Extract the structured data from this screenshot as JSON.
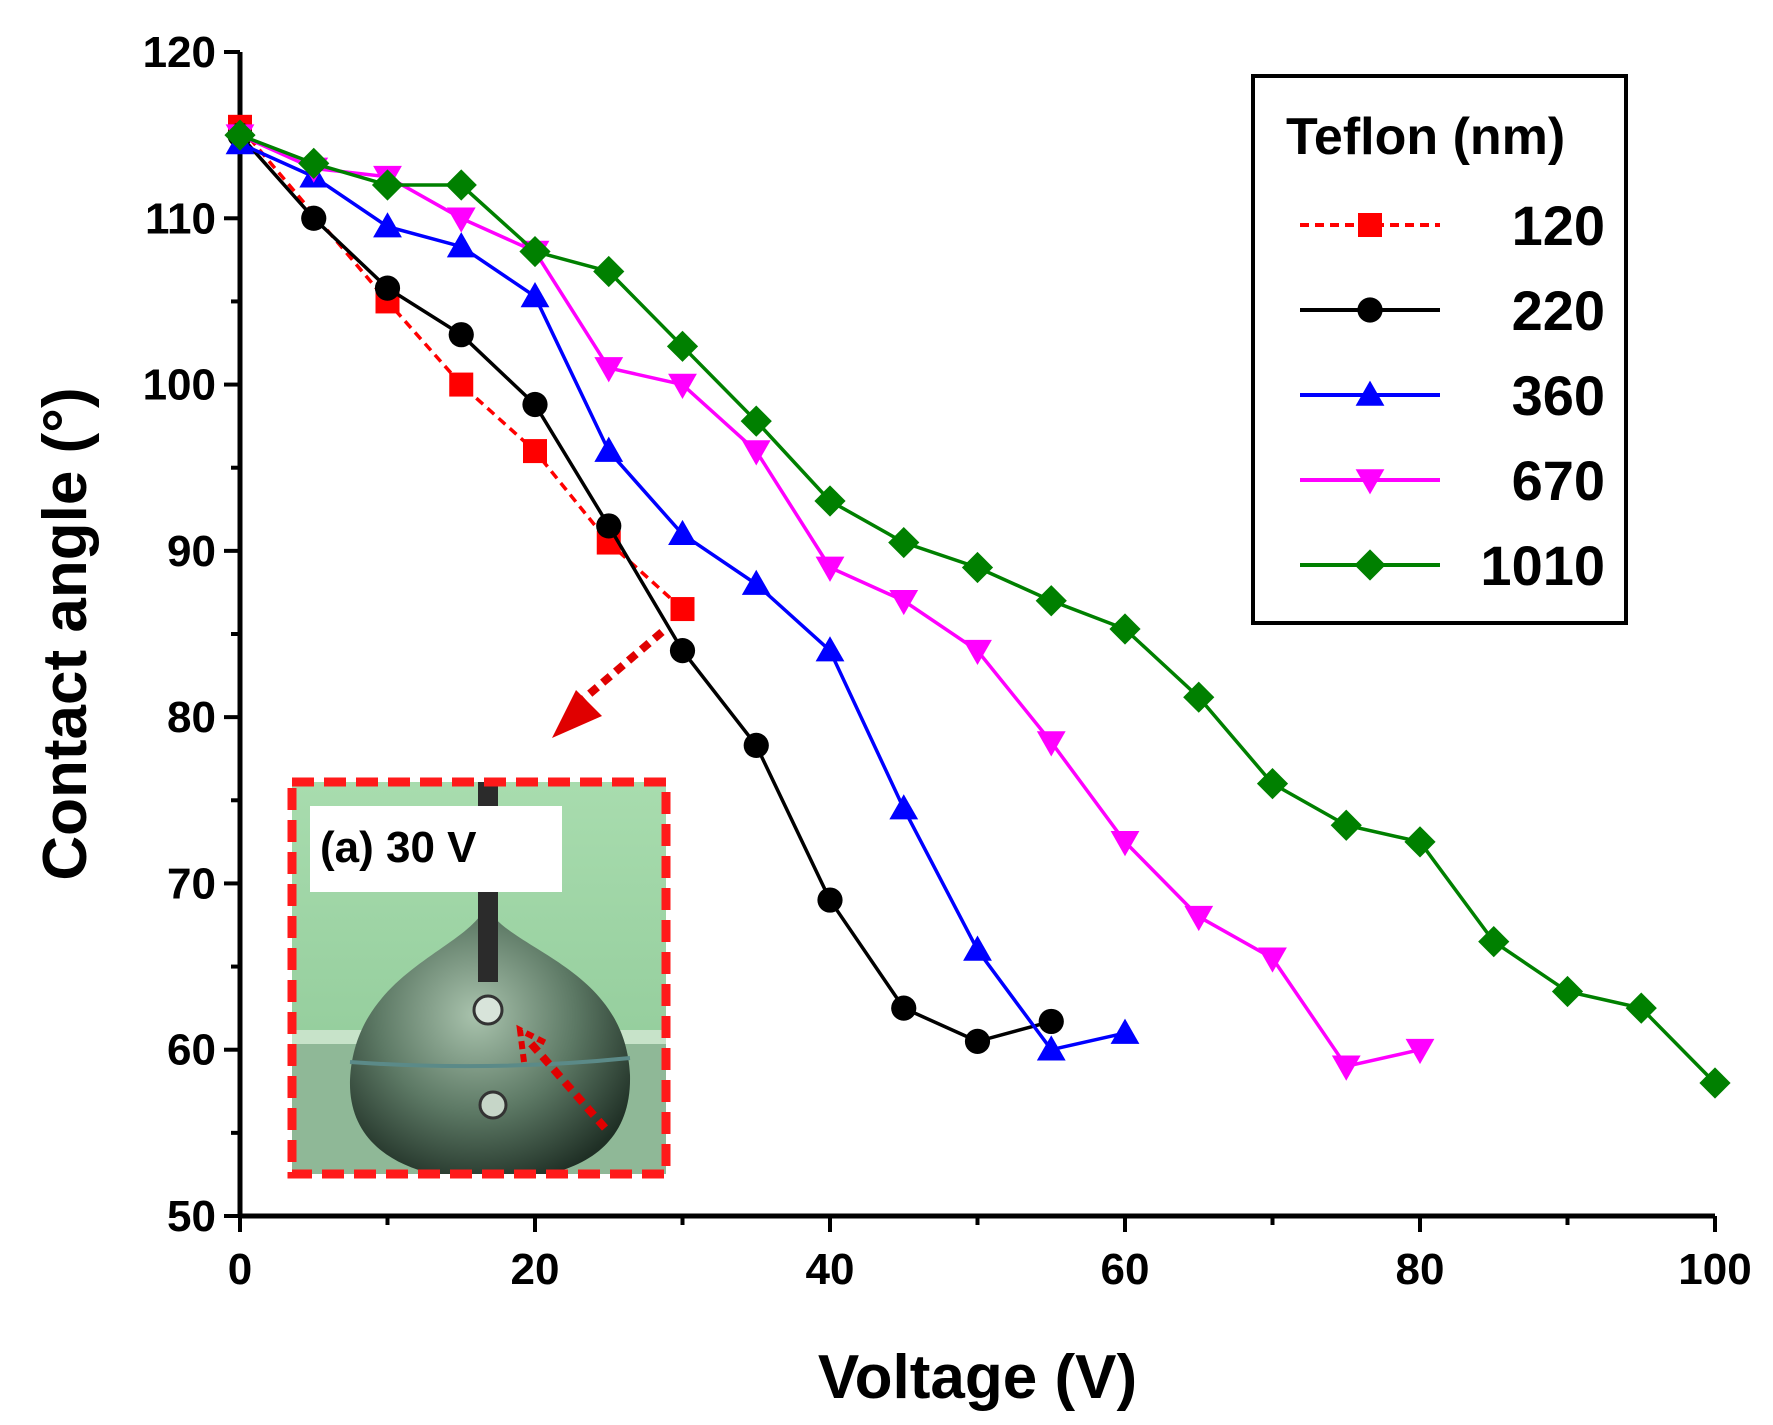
{
  "chart_data": {
    "type": "line",
    "title": "",
    "xlabel": "Voltage (V)",
    "ylabel": "Contact angle (°)",
    "xlim": [
      0,
      100
    ],
    "ylim": [
      50,
      120
    ],
    "xticks": [
      0,
      20,
      40,
      60,
      80,
      100
    ],
    "yticks": [
      50,
      60,
      70,
      80,
      90,
      100,
      110,
      120
    ],
    "legend_title": "Teflon (nm)",
    "legend_position": "top-right",
    "series": [
      {
        "name": "120",
        "color": "#ff0000",
        "marker": "square",
        "dashed": true,
        "x": [
          0,
          10,
          15,
          20,
          25,
          30
        ],
        "y": [
          115.5,
          105,
          100,
          96,
          90.5,
          86.5
        ]
      },
      {
        "name": "220",
        "color": "#000000",
        "marker": "circle",
        "dashed": false,
        "x": [
          0,
          5,
          10,
          15,
          20,
          25,
          30,
          35,
          40,
          45,
          50,
          55
        ],
        "y": [
          115,
          110,
          105.8,
          103,
          98.8,
          91.5,
          84,
          78.3,
          69,
          62.5,
          60.5,
          61.7
        ]
      },
      {
        "name": "360",
        "color": "#0000ff",
        "marker": "triangle-up",
        "dashed": false,
        "x": [
          0,
          5,
          10,
          15,
          20,
          25,
          30,
          35,
          40,
          45,
          50,
          55,
          60
        ],
        "y": [
          114.5,
          112.5,
          109.5,
          108.3,
          105.3,
          96,
          91,
          88,
          84,
          74.5,
          66,
          60,
          61
        ]
      },
      {
        "name": "670",
        "color": "#ff00ff",
        "marker": "triangle-down",
        "dashed": false,
        "x": [
          0,
          5,
          10,
          15,
          20,
          25,
          30,
          35,
          40,
          45,
          50,
          55,
          60,
          65,
          70,
          75,
          80
        ],
        "y": [
          115,
          113,
          112.5,
          110,
          108,
          101,
          100,
          96,
          89,
          87,
          84,
          78.5,
          72.5,
          68,
          65.5,
          59,
          60
        ]
      },
      {
        "name": "1010",
        "color": "#008000",
        "marker": "diamond",
        "dashed": false,
        "x": [
          0,
          5,
          10,
          15,
          20,
          25,
          30,
          35,
          40,
          45,
          50,
          55,
          60,
          65,
          70,
          75,
          80,
          85,
          90,
          95,
          100
        ],
        "y": [
          115,
          113.3,
          112,
          112,
          108,
          106.8,
          102.3,
          97.8,
          93,
          90.5,
          89,
          87,
          85.3,
          81.2,
          76,
          73.5,
          72.5,
          66.5,
          63.5,
          62.5,
          58
        ]
      }
    ],
    "annotations": [
      {
        "text": "(a) 30 V",
        "type": "inset-photo",
        "points_to_series": "120",
        "points_to_x": 30
      }
    ]
  }
}
